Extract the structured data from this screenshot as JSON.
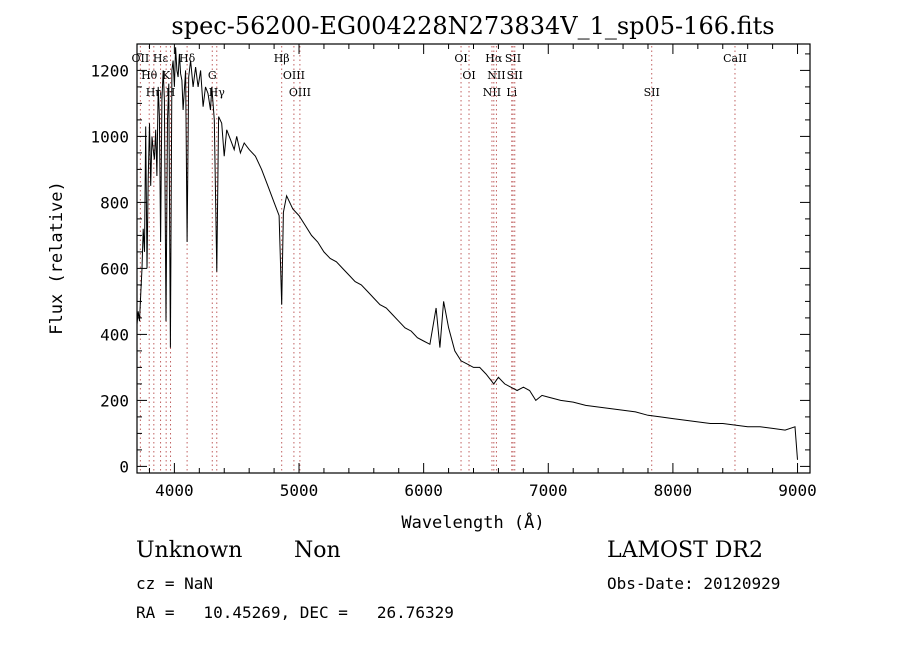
{
  "chart_data": {
    "type": "line",
    "title": "spec-56200-EG004228N273834V_1_sp05-166.fits",
    "xlabel": "Wavelength (Å)",
    "ylabel": "Flux (relative)",
    "xlim": [
      3700,
      9100
    ],
    "ylim": [
      -20,
      1280
    ],
    "x_ticks": [
      4000,
      5000,
      6000,
      7000,
      8000,
      9000
    ],
    "y_ticks": [
      0,
      200,
      400,
      600,
      800,
      1000,
      1200
    ],
    "grid": false,
    "series": [
      {
        "values": [
          [
            3700,
            430
          ],
          [
            3710,
            470
          ],
          [
            3720,
            440
          ],
          [
            3730,
            520
          ],
          [
            3740,
            600
          ],
          [
            3750,
            720
          ],
          [
            3760,
            650
          ],
          [
            3770,
            1030
          ],
          [
            3780,
            600
          ],
          [
            3790,
            870
          ],
          [
            3800,
            1040
          ],
          [
            3810,
            850
          ],
          [
            3820,
            1000
          ],
          [
            3830,
            960
          ],
          [
            3840,
            930
          ],
          [
            3850,
            1020
          ],
          [
            3860,
            880
          ],
          [
            3870,
            1150
          ],
          [
            3880,
            1060
          ],
          [
            3889,
            680
          ],
          [
            3900,
            1110
          ],
          [
            3910,
            1200
          ],
          [
            3920,
            1110
          ],
          [
            3933,
            440
          ],
          [
            3945,
            1050
          ],
          [
            3955,
            1160
          ],
          [
            3968,
            360
          ],
          [
            3980,
            1200
          ],
          [
            3990,
            1230
          ],
          [
            4000,
            1150
          ],
          [
            4010,
            1270
          ],
          [
            4020,
            1200
          ],
          [
            4030,
            1180
          ],
          [
            4040,
            1250
          ],
          [
            4050,
            1190
          ],
          [
            4060,
            1170
          ],
          [
            4070,
            1080
          ],
          [
            4090,
            1200
          ],
          [
            4102,
            680
          ],
          [
            4115,
            1180
          ],
          [
            4130,
            1230
          ],
          [
            4150,
            1150
          ],
          [
            4170,
            1210
          ],
          [
            4190,
            1150
          ],
          [
            4210,
            1200
          ],
          [
            4230,
            1090
          ],
          [
            4250,
            1150
          ],
          [
            4270,
            1130
          ],
          [
            4290,
            1080
          ],
          [
            4300,
            1150
          ],
          [
            4320,
            1050
          ],
          [
            4340,
            590
          ],
          [
            4355,
            1060
          ],
          [
            4380,
            1040
          ],
          [
            4400,
            940
          ],
          [
            4420,
            1020
          ],
          [
            4450,
            990
          ],
          [
            4480,
            960
          ],
          [
            4500,
            1000
          ],
          [
            4530,
            950
          ],
          [
            4560,
            980
          ],
          [
            4600,
            960
          ],
          [
            4650,
            940
          ],
          [
            4700,
            900
          ],
          [
            4750,
            850
          ],
          [
            4800,
            800
          ],
          [
            4840,
            760
          ],
          [
            4861,
            490
          ],
          [
            4875,
            770
          ],
          [
            4900,
            820
          ],
          [
            4950,
            780
          ],
          [
            5000,
            760
          ],
          [
            5050,
            730
          ],
          [
            5100,
            700
          ],
          [
            5150,
            680
          ],
          [
            5200,
            650
          ],
          [
            5250,
            630
          ],
          [
            5300,
            620
          ],
          [
            5350,
            600
          ],
          [
            5400,
            580
          ],
          [
            5450,
            560
          ],
          [
            5500,
            550
          ],
          [
            5550,
            530
          ],
          [
            5600,
            510
          ],
          [
            5650,
            490
          ],
          [
            5700,
            480
          ],
          [
            5750,
            460
          ],
          [
            5800,
            440
          ],
          [
            5850,
            420
          ],
          [
            5900,
            410
          ],
          [
            5950,
            390
          ],
          [
            6000,
            380
          ],
          [
            6050,
            370
          ],
          [
            6100,
            480
          ],
          [
            6130,
            360
          ],
          [
            6160,
            500
          ],
          [
            6200,
            420
          ],
          [
            6250,
            350
          ],
          [
            6300,
            320
          ],
          [
            6350,
            310
          ],
          [
            6400,
            300
          ],
          [
            6450,
            300
          ],
          [
            6500,
            280
          ],
          [
            6563,
            250
          ],
          [
            6600,
            270
          ],
          [
            6650,
            250
          ],
          [
            6700,
            240
          ],
          [
            6750,
            230
          ],
          [
            6800,
            240
          ],
          [
            6850,
            230
          ],
          [
            6900,
            200
          ],
          [
            6950,
            215
          ],
          [
            7000,
            210
          ],
          [
            7100,
            200
          ],
          [
            7200,
            195
          ],
          [
            7300,
            185
          ],
          [
            7400,
            180
          ],
          [
            7500,
            175
          ],
          [
            7600,
            170
          ],
          [
            7700,
            165
          ],
          [
            7800,
            155
          ],
          [
            7900,
            150
          ],
          [
            8000,
            145
          ],
          [
            8100,
            140
          ],
          [
            8200,
            135
          ],
          [
            8300,
            130
          ],
          [
            8400,
            130
          ],
          [
            8500,
            125
          ],
          [
            8600,
            120
          ],
          [
            8700,
            120
          ],
          [
            8800,
            115
          ],
          [
            8900,
            110
          ],
          [
            8980,
            120
          ],
          [
            9000,
            20
          ]
        ]
      }
    ],
    "line_markers": [
      {
        "label": "OII",
        "x": 3727
      },
      {
        "label": "Hθ",
        "x": 3798
      },
      {
        "label": "Hη",
        "x": 3835
      },
      {
        "label": "Hε",
        "x": 3889
      },
      {
        "label": "K",
        "x": 3934
      },
      {
        "label": "H",
        "x": 3969
      },
      {
        "label": "Hδ",
        "x": 4102
      },
      {
        "label": "G",
        "x": 4304
      },
      {
        "label": "Hγ",
        "x": 4340
      },
      {
        "label": "Hβ",
        "x": 4861
      },
      {
        "label": "OIII",
        "x": 4959
      },
      {
        "label": "OIII",
        "x": 5007
      },
      {
        "label": "OI",
        "x": 6300
      },
      {
        "label": "OI",
        "x": 6364
      },
      {
        "label": "NII",
        "x": 6548
      },
      {
        "label": "Hα",
        "x": 6563
      },
      {
        "label": "NII",
        "x": 6584
      },
      {
        "label": "Li",
        "x": 6707
      },
      {
        "label": "SII",
        "x": 6717
      },
      {
        "label": "SII",
        "x": 6731
      },
      {
        "label": "SII",
        "x": 7830
      },
      {
        "label": "CaII",
        "x": 8498
      }
    ]
  },
  "footer": {
    "classification": "Unknown",
    "subclass": "Non",
    "survey": "LAMOST DR2",
    "redshift": "cz = NaN",
    "obs_date": "Obs-Date: 20120929",
    "coords": "RA =   10.45269, DEC =   26.76329"
  },
  "colors": {
    "line": "#000000",
    "marker": "#c06060",
    "axis": "#000000"
  }
}
